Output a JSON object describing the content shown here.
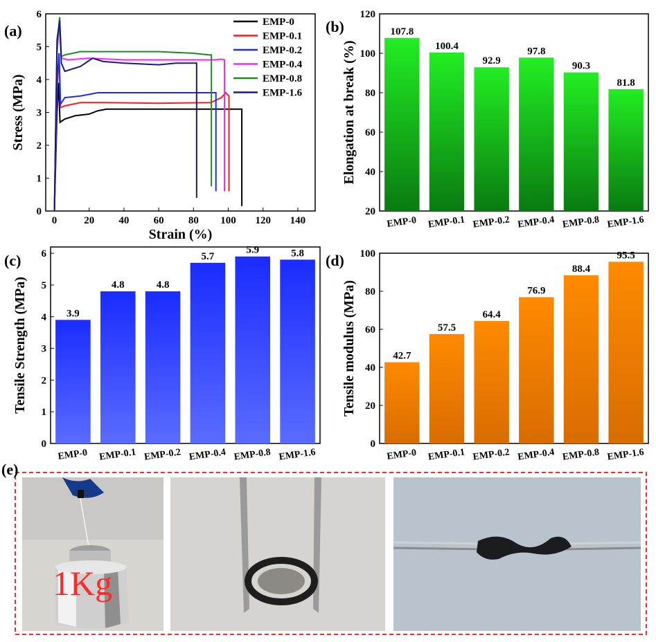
{
  "panels": {
    "a": {
      "label": "(a)"
    },
    "b": {
      "label": "(b)"
    },
    "c": {
      "label": "(c)"
    },
    "d": {
      "label": "(d)"
    },
    "e": {
      "label": "(e)",
      "weight_label": "1Kg"
    }
  },
  "colors": {
    "green_top": "#22ee22",
    "green_bottom": "#0a7a12",
    "blue_top": "#1a2cff",
    "blue_bottom": "#5a6cff",
    "orange_top": "#ff8a00",
    "orange_bottom": "#d86c00",
    "dashed_border": "#e8302a"
  },
  "chart_data": [
    {
      "id": "a",
      "type": "line",
      "title": "",
      "xlabel": "Strain (%)",
      "ylabel": "Stress (MPa)",
      "xlim": [
        -5,
        150
      ],
      "ylim": [
        0,
        6
      ],
      "xticks": [
        "0",
        "20",
        "40",
        "60",
        "80",
        "100",
        "120",
        "140"
      ],
      "yticks": [
        "0",
        "1",
        "2",
        "3",
        "4",
        "5",
        "6"
      ],
      "legend_position": "top-right",
      "series": [
        {
          "name": "EMP-0",
          "color": "#000000",
          "x": [
            0,
            1.5,
            2.5,
            3.2,
            6,
            12,
            20,
            25,
            30,
            60,
            107.5,
            107.8,
            107.8
          ],
          "y": [
            0,
            3.0,
            3.9,
            2.7,
            2.8,
            2.9,
            2.95,
            3.05,
            3.1,
            3.1,
            3.1,
            3.1,
            0.15
          ]
        },
        {
          "name": "EMP-0.1",
          "color": "#ff1a1a",
          "x": [
            0,
            1.5,
            2.6,
            3.5,
            6,
            15,
            30,
            60,
            90,
            96,
            98.5,
            100.4,
            100.4
          ],
          "y": [
            0,
            3.6,
            4.8,
            3.15,
            3.2,
            3.3,
            3.3,
            3.28,
            3.3,
            3.45,
            3.6,
            3.5,
            0.6
          ]
        },
        {
          "name": "EMP-0.2",
          "color": "#1a2cff",
          "x": [
            0,
            1.5,
            2.7,
            3.5,
            6,
            15,
            25,
            50,
            80,
            92.9,
            92.9
          ],
          "y": [
            0,
            3.8,
            4.8,
            3.25,
            3.45,
            3.5,
            3.6,
            3.6,
            3.6,
            3.6,
            0.6
          ]
        },
        {
          "name": "EMP-0.4",
          "color": "#ff22ff",
          "x": [
            0,
            1.5,
            2.8,
            4,
            8,
            20,
            40,
            60,
            80,
            92,
            96,
            97.8,
            97.8
          ],
          "y": [
            0,
            4.8,
            5.7,
            4.65,
            4.6,
            4.65,
            4.6,
            4.6,
            4.6,
            4.6,
            4.62,
            4.6,
            0.6
          ]
        },
        {
          "name": "EMP-0.8",
          "color": "#1a8a1a",
          "x": [
            0,
            1.5,
            3.0,
            4,
            6,
            15,
            30,
            60,
            80,
            89,
            90.3,
            90.3
          ],
          "y": [
            0,
            5.0,
            5.9,
            4.7,
            4.75,
            4.85,
            4.85,
            4.85,
            4.8,
            4.75,
            4.75,
            0.75
          ]
        },
        {
          "name": "EMP-1.6",
          "color": "#1a1a7a",
          "x": [
            0,
            1.5,
            3.0,
            4,
            6,
            15,
            22,
            28,
            40,
            60,
            70,
            81.8,
            81.8
          ],
          "y": [
            0,
            5.2,
            5.8,
            4.5,
            4.25,
            4.4,
            4.65,
            4.55,
            4.5,
            4.45,
            4.5,
            4.5,
            0.4
          ]
        }
      ]
    },
    {
      "id": "b",
      "type": "bar",
      "title": "",
      "xlabel": "",
      "ylabel": "Elongation at break (%)",
      "ylim": [
        20,
        120
      ],
      "yticks": [
        "20",
        "40",
        "60",
        "80",
        "100",
        "120"
      ],
      "categories": [
        "EMP-0",
        "EMP-0.1",
        "EMP-0.2",
        "EMP-0.4",
        "EMP-0.8",
        "EMP-1.6"
      ],
      "values": [
        107.8,
        100.4,
        92.9,
        97.8,
        90.3,
        81.8
      ],
      "data_labels": [
        "107.8",
        "100.4",
        "92.9",
        "97.8",
        "90.3",
        "81.8"
      ]
    },
    {
      "id": "c",
      "type": "bar",
      "title": "",
      "xlabel": "",
      "ylabel": "Tensile Strength (MPa)",
      "ylim": [
        0,
        6.2
      ],
      "yticks": [
        "0",
        "1",
        "2",
        "3",
        "4",
        "5",
        "6"
      ],
      "categories": [
        "EMP-0",
        "EMP-0.1",
        "EMP-0.2",
        "EMP-0.4",
        "EMP-0.8",
        "EMP-1.6"
      ],
      "values": [
        3.9,
        4.8,
        4.8,
        5.7,
        5.9,
        5.8
      ],
      "data_labels": [
        "3.9",
        "4.8",
        "4.8",
        "5.7",
        "5.9",
        "5.8"
      ]
    },
    {
      "id": "d",
      "type": "bar",
      "title": "",
      "xlabel": "",
      "ylabel": "Tensile modulus (MPa)",
      "ylim": [
        0,
        100
      ],
      "yticks": [
        "0",
        "20",
        "40",
        "60",
        "80",
        "100"
      ],
      "categories": [
        "EMP-0",
        "EMP-0.1",
        "EMP-0.2",
        "EMP-0.4",
        "EMP-0.8",
        "EMP-1.6"
      ],
      "values": [
        42.7,
        57.5,
        64.4,
        76.9,
        88.4,
        95.5
      ],
      "data_labels": [
        "42.7",
        "57.5",
        "64.4",
        "76.9",
        "88.4",
        "95.5"
      ]
    }
  ]
}
